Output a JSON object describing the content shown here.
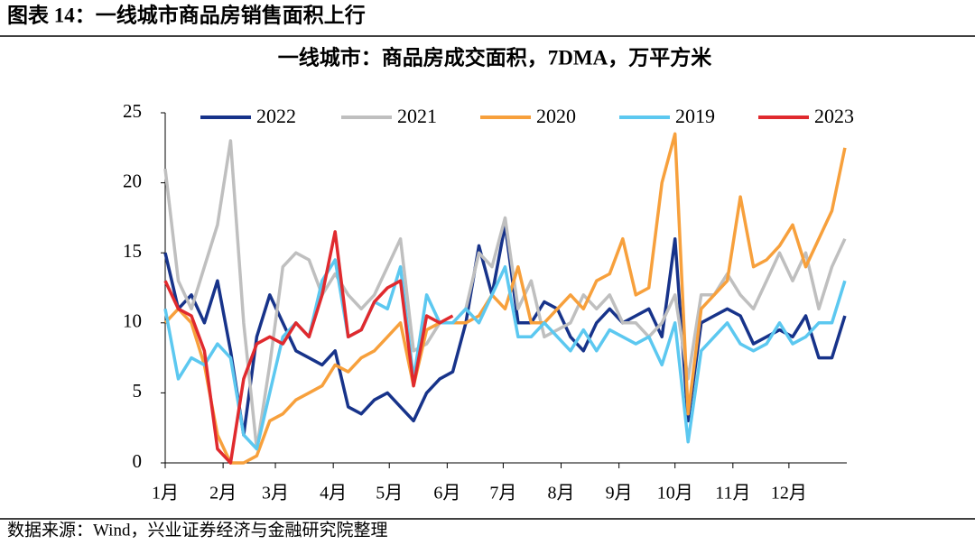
{
  "figure_title": "图表 14：一线城市商品房销售面积上行",
  "source": "数据来源：Wind，兴业证券经济与金融研究院整理",
  "chart_data": {
    "type": "line",
    "title": "一线城市：商品房成交面积，7DMA，万平方米",
    "x": [
      0,
      7,
      14,
      21,
      28,
      35,
      42,
      49,
      56,
      63,
      70,
      77,
      84,
      91,
      98,
      105,
      112,
      119,
      126,
      133,
      140,
      147,
      154,
      161,
      168,
      175,
      182,
      189,
      196,
      203,
      210,
      217,
      224,
      231,
      238,
      245,
      252,
      259,
      266,
      273,
      280,
      287,
      294,
      301,
      308,
      315,
      322,
      329,
      336,
      343,
      350,
      357,
      364
    ],
    "xlim": [
      0,
      365
    ],
    "xticks": [
      {
        "value": 0,
        "label": "1月"
      },
      {
        "value": 31,
        "label": "2月"
      },
      {
        "value": 59,
        "label": "3月"
      },
      {
        "value": 90,
        "label": "4月"
      },
      {
        "value": 120,
        "label": "5月"
      },
      {
        "value": 151,
        "label": "6月"
      },
      {
        "value": 181,
        "label": "7月"
      },
      {
        "value": 212,
        "label": "8月"
      },
      {
        "value": 243,
        "label": "9月"
      },
      {
        "value": 273,
        "label": "10月"
      },
      {
        "value": 304,
        "label": "11月"
      },
      {
        "value": 334,
        "label": "12月"
      }
    ],
    "ylim": [
      0,
      25
    ],
    "yticks": [
      0,
      5,
      10,
      15,
      20,
      25
    ],
    "grid": false,
    "legend": "top",
    "series": [
      {
        "name": "2022",
        "color": "#17338a",
        "values": [
          15,
          11,
          12,
          10,
          13,
          8,
          2,
          9,
          12,
          10,
          8,
          7.5,
          7,
          8,
          4,
          3.5,
          4.5,
          5,
          4,
          3,
          5,
          6,
          6.5,
          10,
          15.5,
          12,
          17,
          10,
          10,
          11.5,
          11,
          9,
          8,
          10,
          11,
          10,
          10.5,
          11,
          9,
          16,
          3,
          10,
          10.5,
          11,
          10.5,
          8.5,
          9,
          9.5,
          9,
          10.5,
          7.5,
          7.5,
          10.5
        ]
      },
      {
        "name": "2021",
        "color": "#bfbfbf",
        "values": [
          21,
          13,
          11,
          14,
          17,
          23,
          10,
          1,
          7,
          14,
          15,
          14.5,
          12,
          13.5,
          12,
          11,
          12,
          14,
          16,
          8,
          8.5,
          10,
          10,
          11,
          15,
          14,
          17.5,
          11,
          13,
          9,
          9.5,
          10,
          12,
          11,
          12,
          10,
          10,
          9,
          10,
          12,
          6,
          12,
          12,
          13.5,
          12,
          11,
          13,
          15,
          13,
          15,
          11,
          14,
          16
        ]
      },
      {
        "name": "2020",
        "color": "#f7a03c",
        "values": [
          10,
          11,
          10,
          7,
          2,
          0,
          0,
          0.5,
          3,
          3.5,
          4.5,
          5,
          5.5,
          7,
          6.5,
          7.5,
          8,
          9,
          10,
          5.5,
          9.5,
          10,
          10,
          10,
          10.5,
          12,
          11,
          14,
          10,
          10,
          11,
          12,
          11,
          13,
          13.5,
          16,
          12,
          12.5,
          20,
          23.5,
          3.5,
          11,
          12,
          13,
          19,
          14,
          14.5,
          15.5,
          17,
          14,
          16,
          18,
          22.5
        ]
      },
      {
        "name": "2019",
        "color": "#5cc8f0",
        "values": [
          11,
          6,
          7.5,
          7,
          8.5,
          7.5,
          2,
          1,
          5,
          9,
          10,
          9,
          13,
          14.5,
          9,
          9.5,
          11.5,
          11,
          14,
          6,
          12,
          10,
          10,
          11,
          10,
          12,
          14,
          9,
          9,
          10,
          9,
          8,
          9.5,
          8,
          9.5,
          9,
          8.5,
          9,
          7,
          10,
          1.5,
          8,
          9,
          10,
          8.5,
          8,
          8.5,
          10,
          8.5,
          9,
          10,
          10,
          13
        ]
      },
      {
        "name": "2023",
        "color": "#e02a2e",
        "values": [
          13,
          11,
          10.5,
          8,
          1,
          0,
          6,
          8.5,
          9,
          8.5,
          10,
          9,
          12,
          16.5,
          9,
          9.5,
          11.5,
          12.5,
          13,
          5.5,
          10.5,
          10,
          10.5,
          null,
          null,
          null,
          null,
          null,
          null,
          null,
          null,
          null,
          null,
          null,
          null,
          null,
          null,
          null,
          null,
          null,
          null,
          null,
          null,
          null,
          null,
          null,
          null,
          null,
          null,
          null,
          null,
          null,
          null
        ]
      }
    ]
  }
}
